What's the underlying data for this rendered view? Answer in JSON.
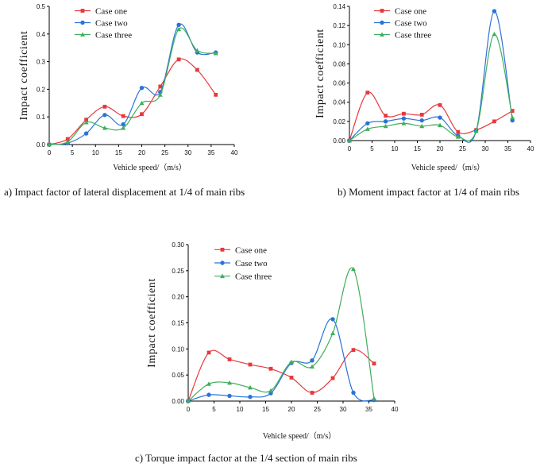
{
  "colors": {
    "case_one": "#e8383d",
    "case_two": "#2a73d6",
    "case_three": "#3fae5c"
  },
  "chart_data": [
    {
      "id": "a",
      "type": "line",
      "caption": "a) Impact factor of lateral displacement at 1/4 of main ribs",
      "xlabel": "Vehicle speed/（m/s）",
      "ylabel": "Impact coefficient",
      "xlim": [
        0,
        40
      ],
      "ylim": [
        0,
        0.5
      ],
      "xticks": [
        0,
        5,
        10,
        15,
        20,
        25,
        30,
        35,
        40
      ],
      "yticks": [
        0.0,
        0.1,
        0.2,
        0.3,
        0.4,
        0.5
      ],
      "ytick_labels": [
        "0.0",
        "0.1",
        "0.2",
        "0.3",
        "0.4",
        "0.5"
      ],
      "legend_position": "top-left",
      "series": [
        {
          "name": "Case one",
          "marker": "square",
          "x": [
            0,
            4,
            8,
            12,
            16,
            20,
            24,
            28,
            32,
            36
          ],
          "y": [
            0.0,
            0.02,
            0.09,
            0.137,
            0.103,
            0.11,
            0.21,
            0.308,
            0.27,
            0.18
          ]
        },
        {
          "name": "Case two",
          "marker": "circle",
          "x": [
            0,
            4,
            8,
            12,
            16,
            20,
            24,
            28,
            32,
            36
          ],
          "y": [
            0.0,
            0.005,
            0.04,
            0.107,
            0.073,
            0.205,
            0.19,
            0.433,
            0.333,
            0.333
          ]
        },
        {
          "name": "Case three",
          "marker": "triangle",
          "x": [
            0,
            4,
            8,
            12,
            16,
            20,
            24,
            28,
            32,
            36
          ],
          "y": [
            0.0,
            0.01,
            0.08,
            0.06,
            0.06,
            0.15,
            0.18,
            0.417,
            0.34,
            0.33
          ]
        }
      ]
    },
    {
      "id": "b",
      "type": "line",
      "caption": "b) Moment impact factor at 1/4 of main ribs",
      "xlabel": "Vehicle speed/（m/s）",
      "ylabel": "Impact coefficient",
      "xlim": [
        0,
        40
      ],
      "ylim": [
        0,
        0.14
      ],
      "xticks": [
        0,
        5,
        10,
        15,
        20,
        25,
        30,
        35,
        40
      ],
      "yticks": [
        0.0,
        0.02,
        0.04,
        0.06,
        0.08,
        0.1,
        0.12,
        0.14
      ],
      "ytick_labels": [
        "0.00",
        "0.02",
        "0.04",
        "0.06",
        "0.08",
        "0.10",
        "0.12",
        "0.14"
      ],
      "legend_position": "top-left",
      "series": [
        {
          "name": "Case one",
          "marker": "square",
          "x": [
            0,
            4,
            8,
            12,
            16,
            20,
            24,
            28,
            32,
            36
          ],
          "y": [
            0.0,
            0.05,
            0.026,
            0.028,
            0.027,
            0.037,
            0.009,
            0.011,
            0.02,
            0.031
          ]
        },
        {
          "name": "Case two",
          "marker": "circle",
          "x": [
            0,
            4,
            8,
            12,
            16,
            20,
            24,
            28,
            32,
            36
          ],
          "y": [
            0.0,
            0.018,
            0.02,
            0.023,
            0.021,
            0.024,
            0.005,
            0.01,
            0.135,
            0.021
          ]
        },
        {
          "name": "Case three",
          "marker": "triangle",
          "x": [
            0,
            4,
            8,
            12,
            16,
            20,
            24,
            28,
            32,
            36
          ],
          "y": [
            0.0,
            0.012,
            0.015,
            0.018,
            0.015,
            0.016,
            0.004,
            0.01,
            0.111,
            0.024
          ]
        }
      ]
    },
    {
      "id": "c",
      "type": "line",
      "caption": "c) Torque impact factor at the 1/4 section of main ribs",
      "xlabel": "Vehicle speed/（m/s）",
      "ylabel": "Impact coefficient",
      "xlim": [
        0,
        40
      ],
      "ylim": [
        0,
        0.3
      ],
      "xticks": [
        0,
        5,
        10,
        15,
        20,
        25,
        30,
        35,
        40
      ],
      "yticks": [
        0.0,
        0.05,
        0.1,
        0.15,
        0.2,
        0.25,
        0.3
      ],
      "ytick_labels": [
        "0.00",
        "0.05",
        "0.10",
        "0.15",
        "0.20",
        "0.25",
        "0.30"
      ],
      "legend_position": "top-right",
      "series": [
        {
          "name": "Case one",
          "marker": "square",
          "x": [
            0,
            4,
            8,
            12,
            16,
            20,
            24,
            28,
            32,
            36
          ],
          "y": [
            0.0,
            0.093,
            0.08,
            0.07,
            0.062,
            0.045,
            0.016,
            0.044,
            0.098,
            0.072
          ]
        },
        {
          "name": "Case two",
          "marker": "circle",
          "x": [
            0,
            4,
            8,
            12,
            16,
            20,
            24,
            28,
            32,
            36
          ],
          "y": [
            0.0,
            0.012,
            0.01,
            0.008,
            0.015,
            0.073,
            0.078,
            0.157,
            0.016,
            0.002
          ]
        },
        {
          "name": "Case three",
          "marker": "triangle",
          "x": [
            0,
            4,
            8,
            12,
            16,
            20,
            24,
            28,
            32,
            36
          ],
          "y": [
            0.0,
            0.033,
            0.035,
            0.026,
            0.02,
            0.075,
            0.066,
            0.13,
            0.253,
            0.005
          ]
        }
      ]
    }
  ]
}
